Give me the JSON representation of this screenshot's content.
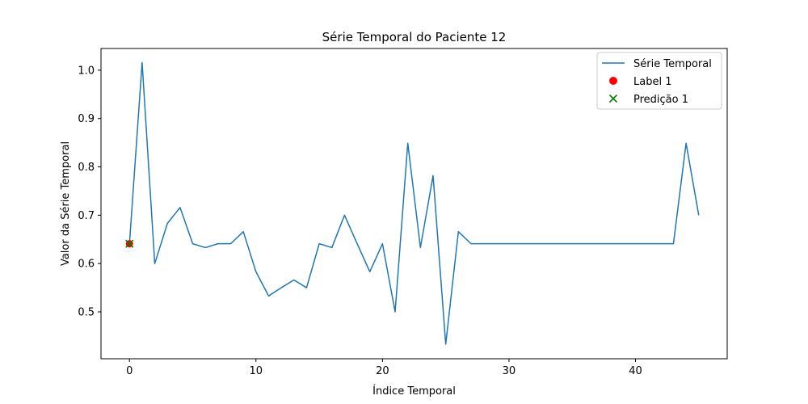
{
  "chart_data": {
    "type": "line",
    "title": "Série Temporal do Paciente 12",
    "xlabel": "Índice Temporal",
    "ylabel": "Valor da Série Temporal",
    "xlim": [
      -2.25,
      47.25
    ],
    "ylim": [
      0.403,
      1.045
    ],
    "xticks": [
      0,
      10,
      20,
      30,
      40
    ],
    "yticks": [
      0.5,
      0.6,
      0.7,
      0.8,
      0.9,
      1.0
    ],
    "xtick_labels": [
      "0",
      "10",
      "20",
      "30",
      "40"
    ],
    "ytick_labels": [
      "0.5",
      "0.6",
      "0.7",
      "0.8",
      "0.9",
      "1.0"
    ],
    "grid": false,
    "legend_position": "top-right",
    "series": [
      {
        "name": "Série Temporal",
        "kind": "line",
        "color": "#1f77b4",
        "x": [
          0,
          1,
          2,
          3,
          4,
          5,
          6,
          7,
          8,
          9,
          10,
          11,
          12,
          13,
          14,
          15,
          16,
          17,
          18,
          19,
          20,
          21,
          22,
          23,
          24,
          25,
          26,
          27,
          28,
          29,
          30,
          31,
          32,
          33,
          34,
          35,
          36,
          37,
          38,
          39,
          40,
          41,
          42,
          43,
          44,
          45
        ],
        "y": [
          0.641,
          1.016,
          0.6,
          0.683,
          0.716,
          0.641,
          0.633,
          0.641,
          0.641,
          0.666,
          0.583,
          0.533,
          0.55,
          0.566,
          0.55,
          0.641,
          0.633,
          0.7,
          0.641,
          0.583,
          0.641,
          0.5,
          0.849,
          0.633,
          0.782,
          0.433,
          0.666,
          0.641,
          0.641,
          0.641,
          0.641,
          0.641,
          0.641,
          0.641,
          0.641,
          0.641,
          0.641,
          0.641,
          0.641,
          0.641,
          0.641,
          0.641,
          0.641,
          0.641,
          0.849,
          0.7
        ]
      },
      {
        "name": "Label 1",
        "kind": "scatter",
        "marker": "circle",
        "color": "#ff0000",
        "x": [
          0
        ],
        "y": [
          0.641
        ]
      },
      {
        "name": "Predição 1",
        "kind": "scatter",
        "marker": "x",
        "color": "#008000",
        "x": [
          0
        ],
        "y": [
          0.641
        ]
      }
    ]
  }
}
